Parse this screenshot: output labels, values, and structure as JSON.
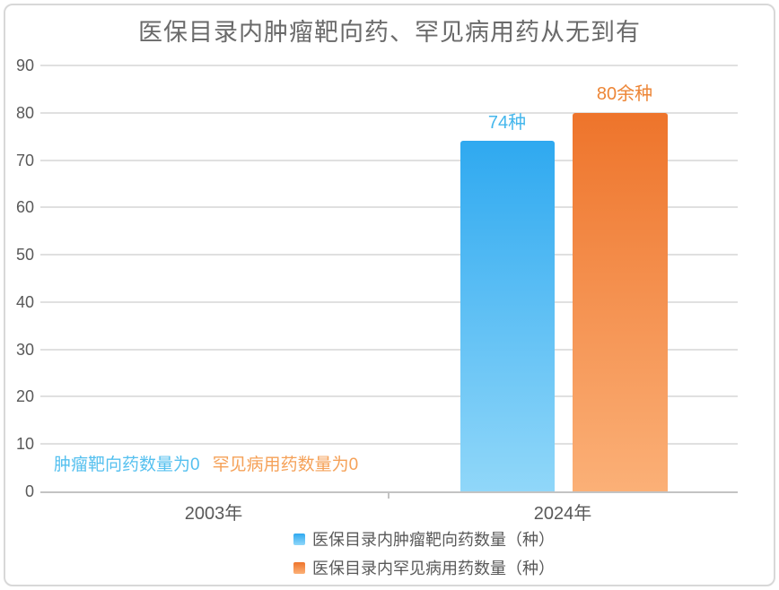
{
  "title": "医保目录内肿瘤靶向药、罕见病用药从无到有",
  "chart_data": {
    "type": "bar",
    "categories": [
      "2003年",
      "2024年"
    ],
    "series": [
      {
        "name": "医保目录内肿瘤靶向药数量（种）",
        "values": [
          0,
          74
        ],
        "color_top": "#2FA9F0",
        "color_bottom": "#90D7F9"
      },
      {
        "name": "医保目录内罕见病用药数量（种）",
        "values": [
          0,
          80
        ],
        "color_top": "#EE742B",
        "color_bottom": "#FBB077"
      }
    ],
    "value_labels": [
      {
        "text": "74种",
        "color": "#45B7EC"
      },
      {
        "text": "80余种",
        "color": "#ED8637"
      }
    ],
    "annotations": [
      {
        "text": "肿瘤靶向药数量为0",
        "color": "#55C0EF"
      },
      {
        "text": "罕见病用药数量为0",
        "color": "#F5A158"
      }
    ],
    "ylim": [
      0,
      90
    ],
    "ytick_step": 10,
    "yticks": [
      0,
      10,
      20,
      30,
      40,
      50,
      60,
      70,
      80,
      90
    ],
    "grid": true,
    "legend_position": "bottom",
    "xlabel": "",
    "ylabel": ""
  },
  "colors": {
    "title_text": "#6A6A6A",
    "axis_text": "#595959",
    "gridline": "#E0E0E0",
    "axis_line": "#C3C3C3",
    "frame_border": "#D8D8D8"
  }
}
